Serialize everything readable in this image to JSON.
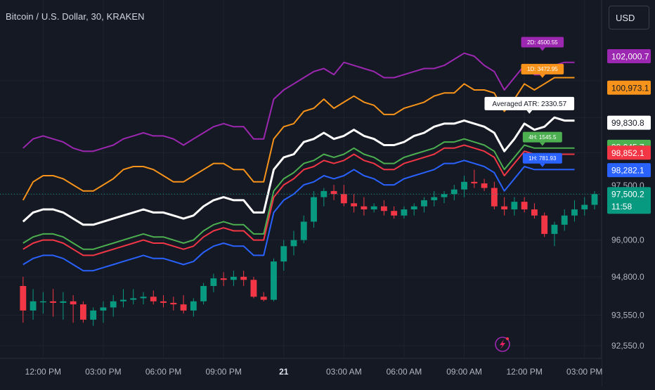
{
  "header": {
    "symbol_title": "Bitcoin / U.S. Dollar, 30, KRAKEN",
    "currency_button": "USD"
  },
  "colors": {
    "background": "#151924",
    "grid": "#1f2330",
    "candle_up": "#089981",
    "candle_down": "#f23645",
    "atr_2d": "#9c27b0",
    "atr_1d": "#f7931a",
    "atr_avg": "#ffffff",
    "atr_4h": "#4caf50",
    "atr_red": "#f23645",
    "atr_1h": "#2962ff"
  },
  "chart_data": {
    "type": "candlestick",
    "title": "Bitcoin / U.S. Dollar, 30, KRAKEN",
    "ylim": [
      92350,
      102700
    ],
    "y_ticks": [
      "92,550.0",
      "93,550.0",
      "94,800.0",
      "96,000.0",
      "97,500.0",
      "98,282.1",
      "98,852.1",
      "99,045.7",
      "99,830.8",
      "100,973.1",
      "102,000.7"
    ],
    "x_tick_labels": [
      "12:00 PM",
      "03:00 PM",
      "06:00 PM",
      "09:00 PM",
      "21",
      "03:00 AM",
      "06:00 AM",
      "09:00 AM",
      "12:00 PM",
      "03:00 PM"
    ],
    "x_tick_positions": [
      2,
      8,
      14,
      20,
      26,
      32,
      38,
      44,
      50,
      56
    ],
    "x_range": [
      -2.3,
      57.7
    ],
    "candles": [
      {
        "o": 94500,
        "h": 94800,
        "l": 93300,
        "c": 93700
      },
      {
        "o": 93700,
        "h": 94400,
        "l": 93400,
        "c": 94000
      },
      {
        "o": 94000,
        "h": 94300,
        "l": 93600,
        "c": 94000
      },
      {
        "o": 94000,
        "h": 94400,
        "l": 93500,
        "c": 93950
      },
      {
        "o": 93950,
        "h": 94300,
        "l": 93400,
        "c": 94000
      },
      {
        "o": 94000,
        "h": 94200,
        "l": 93300,
        "c": 93900
      },
      {
        "o": 93900,
        "h": 94000,
        "l": 93300,
        "c": 93400
      },
      {
        "o": 93400,
        "h": 93800,
        "l": 93200,
        "c": 93700
      },
      {
        "o": 93700,
        "h": 94000,
        "l": 93300,
        "c": 93800
      },
      {
        "o": 93800,
        "h": 94200,
        "l": 93500,
        "c": 94000
      },
      {
        "o": 94000,
        "h": 94400,
        "l": 93800,
        "c": 94050
      },
      {
        "o": 94050,
        "h": 94400,
        "l": 93900,
        "c": 94100
      },
      {
        "o": 94100,
        "h": 94300,
        "l": 93900,
        "c": 94150
      },
      {
        "o": 94150,
        "h": 94350,
        "l": 93900,
        "c": 94000
      },
      {
        "o": 94000,
        "h": 94200,
        "l": 93800,
        "c": 93950
      },
      {
        "o": 93950,
        "h": 94150,
        "l": 93700,
        "c": 93900
      },
      {
        "o": 93900,
        "h": 94200,
        "l": 93600,
        "c": 93700
      },
      {
        "o": 93700,
        "h": 94100,
        "l": 93500,
        "c": 94000
      },
      {
        "o": 94000,
        "h": 94600,
        "l": 93900,
        "c": 94500
      },
      {
        "o": 94500,
        "h": 94900,
        "l": 94300,
        "c": 94750
      },
      {
        "o": 94750,
        "h": 94950,
        "l": 94500,
        "c": 94700
      },
      {
        "o": 94700,
        "h": 95000,
        "l": 94500,
        "c": 94800
      },
      {
        "o": 94800,
        "h": 95000,
        "l": 94500,
        "c": 94700
      },
      {
        "o": 94700,
        "h": 94800,
        "l": 94100,
        "c": 94150
      },
      {
        "o": 94150,
        "h": 94300,
        "l": 94000,
        "c": 94050
      },
      {
        "o": 94050,
        "h": 95400,
        "l": 94000,
        "c": 95300
      },
      {
        "o": 95300,
        "h": 96000,
        "l": 95000,
        "c": 95800
      },
      {
        "o": 95800,
        "h": 96300,
        "l": 95500,
        "c": 96000
      },
      {
        "o": 96000,
        "h": 96800,
        "l": 95900,
        "c": 96600
      },
      {
        "o": 96600,
        "h": 97600,
        "l": 96400,
        "c": 97400
      },
      {
        "o": 97400,
        "h": 97700,
        "l": 97100,
        "c": 97600
      },
      {
        "o": 97600,
        "h": 97800,
        "l": 97300,
        "c": 97500
      },
      {
        "o": 97500,
        "h": 97800,
        "l": 97100,
        "c": 97200
      },
      {
        "o": 97200,
        "h": 97500,
        "l": 96900,
        "c": 97100
      },
      {
        "o": 97100,
        "h": 97400,
        "l": 96800,
        "c": 97000
      },
      {
        "o": 97000,
        "h": 97200,
        "l": 96900,
        "c": 97100
      },
      {
        "o": 97100,
        "h": 97300,
        "l": 96800,
        "c": 96950
      },
      {
        "o": 96950,
        "h": 97100,
        "l": 96700,
        "c": 96800
      },
      {
        "o": 96800,
        "h": 97100,
        "l": 96700,
        "c": 97000
      },
      {
        "o": 97000,
        "h": 97200,
        "l": 96800,
        "c": 97100
      },
      {
        "o": 97100,
        "h": 97400,
        "l": 96900,
        "c": 97300
      },
      {
        "o": 97300,
        "h": 97600,
        "l": 97100,
        "c": 97400
      },
      {
        "o": 97400,
        "h": 97600,
        "l": 97200,
        "c": 97500
      },
      {
        "o": 97500,
        "h": 97800,
        "l": 97300,
        "c": 97650
      },
      {
        "o": 97650,
        "h": 98100,
        "l": 97400,
        "c": 97900
      },
      {
        "o": 97900,
        "h": 98300,
        "l": 97700,
        "c": 97850
      },
      {
        "o": 97850,
        "h": 98000,
        "l": 97600,
        "c": 97700
      },
      {
        "o": 97700,
        "h": 97900,
        "l": 97000,
        "c": 97100
      },
      {
        "o": 97100,
        "h": 97400,
        "l": 96800,
        "c": 97000
      },
      {
        "o": 97000,
        "h": 97400,
        "l": 96800,
        "c": 97250
      },
      {
        "o": 97250,
        "h": 97400,
        "l": 96900,
        "c": 97000
      },
      {
        "o": 97000,
        "h": 97200,
        "l": 96700,
        "c": 96800
      },
      {
        "o": 96800,
        "h": 96900,
        "l": 96100,
        "c": 96200
      },
      {
        "o": 96200,
        "h": 96600,
        "l": 95800,
        "c": 96500
      },
      {
        "o": 96500,
        "h": 97000,
        "l": 96300,
        "c": 96800
      },
      {
        "o": 96800,
        "h": 97300,
        "l": 96600,
        "c": 97000
      },
      {
        "o": 97000,
        "h": 97400,
        "l": 96800,
        "c": 97150
      },
      {
        "o": 97150,
        "h": 97600,
        "l": 97000,
        "c": 97500
      }
    ],
    "series": [
      {
        "label": "2D: 4500.55",
        "color": "#9c27b0",
        "values": [
          99000,
          99300,
          99400,
          99300,
          99200,
          99000,
          98900,
          98900,
          99000,
          99100,
          99300,
          99400,
          99500,
          99400,
          99400,
          99300,
          99100,
          99300,
          99500,
          99700,
          99800,
          99700,
          99700,
          99300,
          99300,
          100600,
          100900,
          101100,
          101300,
          101500,
          101600,
          101400,
          101800,
          101700,
          101600,
          101500,
          101300,
          101300,
          101400,
          101500,
          101600,
          101600,
          101700,
          101900,
          102100,
          102000,
          101700,
          101500,
          100900,
          101300,
          101700,
          101400,
          101400,
          101700,
          101800,
          101800
        ]
      },
      {
        "label": "1D: 3472.95",
        "color": "#f7931a",
        "values": [
          97300,
          97900,
          98100,
          98100,
          98000,
          97800,
          97600,
          97600,
          97800,
          98000,
          98300,
          98400,
          98400,
          98300,
          98100,
          97900,
          97900,
          98100,
          98300,
          98500,
          98500,
          98300,
          98300,
          97900,
          97900,
          99300,
          99700,
          99800,
          100200,
          100300,
          100600,
          100300,
          100500,
          100700,
          100500,
          100400,
          100100,
          100100,
          100300,
          100400,
          100500,
          100700,
          100800,
          100800,
          101100,
          100900,
          100900,
          100800,
          100200,
          100600,
          101100,
          100900,
          101100,
          101300,
          101300,
          101300
        ]
      },
      {
        "label": "Averaged ATR: 2330.57",
        "color": "#ffffff",
        "values": [
          96600,
          96900,
          97000,
          97000,
          96900,
          96700,
          96500,
          96500,
          96600,
          96700,
          96800,
          96900,
          97000,
          96900,
          96900,
          96800,
          96700,
          96800,
          97100,
          97300,
          97400,
          97300,
          97300,
          96900,
          96900,
          98300,
          98700,
          98800,
          99200,
          99300,
          99500,
          99300,
          99400,
          99600,
          99400,
          99300,
          99100,
          99100,
          99200,
          99400,
          99500,
          99700,
          99800,
          99800,
          99900,
          99800,
          99700,
          99500,
          98900,
          99300,
          99800,
          99600,
          99700,
          100000,
          99900,
          99900
        ]
      },
      {
        "label": "4H: 1545.5",
        "color": "#4caf50",
        "values": [
          95900,
          96100,
          96200,
          96200,
          96100,
          95900,
          95700,
          95700,
          95800,
          95900,
          96000,
          96100,
          96200,
          96100,
          96100,
          96000,
          95900,
          96000,
          96300,
          96500,
          96600,
          96500,
          96500,
          96200,
          96200,
          97600,
          98000,
          98200,
          98500,
          98600,
          98800,
          98700,
          98800,
          99000,
          98800,
          98700,
          98500,
          98500,
          98700,
          98800,
          98900,
          99000,
          99200,
          99200,
          99300,
          99200,
          99100,
          98900,
          98300,
          98700,
          99100,
          99000,
          99000,
          99000,
          99000,
          99000
        ]
      },
      {
        "label": "",
        "color": "#f23645",
        "values": [
          95700,
          95900,
          96000,
          96000,
          95900,
          95700,
          95500,
          95500,
          95600,
          95700,
          95800,
          95900,
          96000,
          95900,
          95900,
          95800,
          95700,
          95800,
          96100,
          96300,
          96400,
          96300,
          96300,
          96000,
          96000,
          97400,
          97800,
          98000,
          98300,
          98400,
          98600,
          98500,
          98600,
          98800,
          98600,
          98500,
          98300,
          98300,
          98500,
          98600,
          98700,
          98800,
          99000,
          99000,
          99100,
          99000,
          98900,
          98700,
          98100,
          98500,
          98900,
          98800,
          98800,
          98800,
          98800,
          98800
        ]
      },
      {
        "label": "1H: 781.93",
        "color": "#2962ff",
        "values": [
          95200,
          95400,
          95500,
          95500,
          95400,
          95200,
          95000,
          95000,
          95100,
          95200,
          95300,
          95400,
          95500,
          95400,
          95400,
          95300,
          95200,
          95300,
          95600,
          95800,
          95900,
          95800,
          95800,
          95500,
          95500,
          96900,
          97300,
          97500,
          97800,
          97900,
          98100,
          98000,
          98100,
          98300,
          98100,
          98000,
          97800,
          97800,
          98000,
          98100,
          98200,
          98300,
          98500,
          98500,
          98600,
          98500,
          98400,
          98200,
          97600,
          98000,
          98400,
          98300,
          98300,
          98300,
          98300,
          98300
        ]
      }
    ],
    "price_tags": [
      {
        "label": "102,000.7",
        "price": 102000.7,
        "bg": "#9c27b0",
        "fg": "#ffffff"
      },
      {
        "label": "100,973.1",
        "price": 100973.1,
        "bg": "#f7931a",
        "fg": "#151924"
      },
      {
        "label": "99,830.8",
        "price": 99830.8,
        "bg": "#ffffff",
        "fg": "#151924"
      },
      {
        "label": "99,045.7",
        "price": 99045.7,
        "bg": "#4caf50",
        "fg": "#ffffff"
      },
      {
        "label": "98,852.1",
        "price": 98852.1,
        "bg": "#f23645",
        "fg": "#ffffff"
      },
      {
        "label": "98,282.1",
        "price": 98282.1,
        "bg": "#2962ff",
        "fg": "#ffffff"
      }
    ],
    "last_price": {
      "label": "97,500.2",
      "countdown": "11:58",
      "price": 97500.2,
      "bg": "#089981"
    },
    "annotations": [
      {
        "text": "2D: 4500.55",
        "x": 51.8,
        "price": 102150,
        "bg": "#9c27b0",
        "fg": "#ffffff",
        "small": true
      },
      {
        "text": "1D: 3472.95",
        "x": 51.8,
        "price": 101270,
        "bg": "#f7931a",
        "fg": "#ffffff",
        "small": true
      },
      {
        "text": "Averaged ATR: 2330.57",
        "x": 50.5,
        "price": 100100,
        "bg": "#ffffff",
        "fg": "#151924",
        "small": false
      },
      {
        "text": "4H: 1545.5",
        "x": 51.8,
        "price": 99050,
        "bg": "#4caf50",
        "fg": "#ffffff",
        "small": true
      },
      {
        "text": "1H: 781.93",
        "x": 51.8,
        "price": 98360,
        "bg": "#2962ff",
        "fg": "#ffffff",
        "small": true
      }
    ]
  }
}
